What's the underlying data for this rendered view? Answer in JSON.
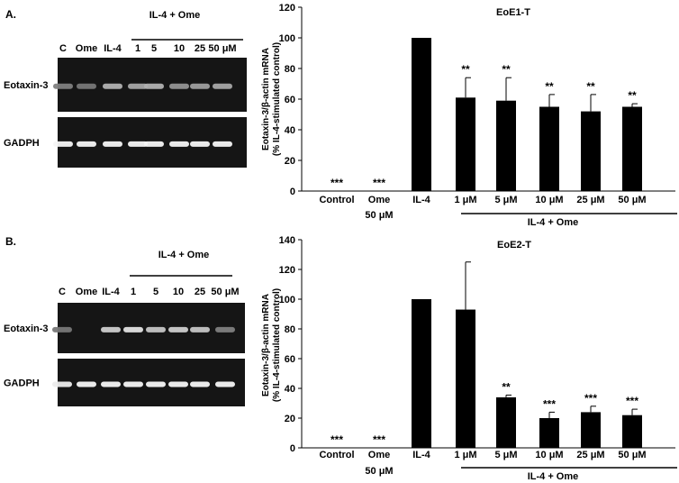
{
  "panels": [
    {
      "label": "A.",
      "gel": {
        "bracket_label": "IL-4 + Ome",
        "lane_labels": [
          "C",
          "Ome",
          "IL-4",
          "1",
          "5",
          "10",
          "25",
          "50 μM"
        ],
        "band_rows": [
          {
            "label": "Eotaxin-3",
            "intensity": [
              0.35,
              0.3,
              0.6,
              0.55,
              0.6,
              0.45,
              0.5,
              0.55
            ]
          },
          {
            "label": "GADPH",
            "intensity": [
              0.95,
              0.95,
              0.95,
              0.95,
              0.95,
              0.95,
              0.95,
              0.95
            ]
          }
        ]
      }
    },
    {
      "label": "B.",
      "gel": {
        "bracket_label": "IL-4 + Ome",
        "lane_labels": [
          "C",
          "Ome",
          "IL-4",
          "1",
          "5",
          "10",
          "25",
          "50 μM"
        ],
        "band_rows": [
          {
            "label": "Eotaxin-3",
            "intensity": [
              0.3,
              0.0,
              0.75,
              0.85,
              0.7,
              0.75,
              0.7,
              0.35
            ]
          },
          {
            "label": "GADPH",
            "intensity": [
              0.9,
              0.95,
              0.95,
              0.95,
              0.95,
              0.95,
              0.95,
              0.95
            ]
          }
        ]
      }
    }
  ],
  "chart_data": [
    {
      "type": "bar",
      "title": "EoE1-T",
      "ylabel_lines": [
        "Eotaxin-3/β-actin mRNA",
        "(% IL-4-stimulated control)"
      ],
      "xlabel": "",
      "ylim": [
        0,
        120
      ],
      "yticks": [
        0,
        20,
        40,
        60,
        80,
        100,
        120
      ],
      "categories": [
        "Control",
        "Ome",
        "IL-4",
        "1 μM",
        "5 μM",
        "10 μM",
        "25 μM",
        "50 μM"
      ],
      "values": [
        0,
        0,
        100,
        61,
        59,
        55,
        52,
        55
      ],
      "error": [
        0,
        0,
        0,
        13,
        15,
        8,
        11,
        2
      ],
      "significance": [
        "***",
        "***",
        "",
        "**",
        "**",
        "**",
        "**",
        "**"
      ],
      "sub_label": "50 μM",
      "group_label": "IL-4 + Ome",
      "grid": false,
      "bar_color": "#000000"
    },
    {
      "type": "bar",
      "title": "EoE2-T",
      "ylabel_lines": [
        "Eotaxin-3/β-actin mRNA",
        "(% IL-4-stimulated control)"
      ],
      "xlabel": "",
      "ylim": [
        0,
        140
      ],
      "yticks": [
        0,
        20,
        40,
        60,
        80,
        100,
        120,
        140
      ],
      "categories": [
        "Control",
        "Ome",
        "IL-4",
        "1 μM",
        "5 μM",
        "10 μM",
        "25 μM",
        "50 μM"
      ],
      "values": [
        0,
        0,
        100,
        93,
        34,
        20,
        24,
        22
      ],
      "error": [
        0,
        0,
        0,
        32,
        1.5,
        4,
        4,
        4
      ],
      "significance": [
        "***",
        "***",
        "",
        "",
        "**",
        "***",
        "***",
        "***"
      ],
      "sub_label": "50 μM",
      "group_label": "IL-4 + Ome",
      "grid": false,
      "bar_color": "#000000"
    }
  ]
}
